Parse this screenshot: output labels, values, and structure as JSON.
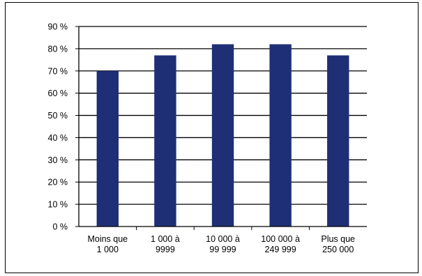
{
  "chart_data": {
    "type": "bar",
    "title": "",
    "xlabel": "",
    "ylabel": "",
    "categories": [
      [
        "Moins que",
        "1 000"
      ],
      [
        "1 000 à",
        "9999"
      ],
      [
        "10 000 à",
        "99 999"
      ],
      [
        "100 000 à",
        "249 999"
      ],
      [
        "Plus que",
        "250 000"
      ]
    ],
    "values": [
      70,
      77,
      82,
      82,
      77
    ],
    "ylim": [
      0,
      90
    ],
    "yticks": [
      0,
      10,
      20,
      30,
      40,
      50,
      60,
      70,
      80,
      90
    ],
    "ytick_labels": [
      "0 %",
      "10 %",
      "20 %",
      "30 %",
      "40 %",
      "50 %",
      "60 %",
      "70 %",
      "80 %",
      "90 %"
    ],
    "grid": true,
    "legend": "none",
    "bar_color": "#1f2f75",
    "grid_color": "#000000"
  }
}
